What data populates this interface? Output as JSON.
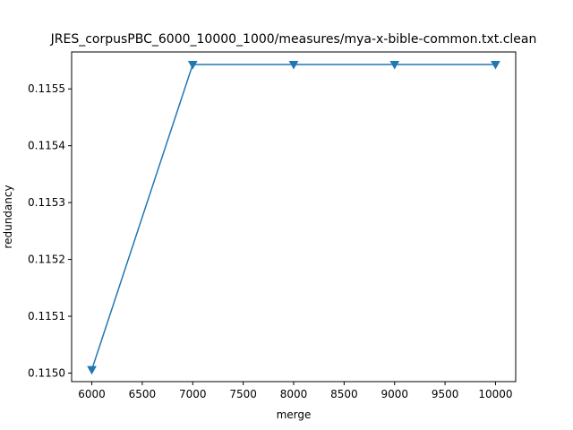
{
  "chart_data": {
    "type": "line",
    "title": "JRES_corpusPBC_6000_10000_1000/measures/mya-x-bible-common.txt.clean",
    "xlabel": "merge",
    "ylabel": "redundancy",
    "xlim": [
      5800,
      10200
    ],
    "ylim": [
      0.114985,
      0.115565
    ],
    "xticks": [
      6000,
      6500,
      7000,
      7500,
      8000,
      8500,
      9000,
      9500,
      10000
    ],
    "xtick_labels": [
      "6000",
      "6500",
      "7000",
      "7500",
      "8000",
      "8500",
      "9000",
      "9500",
      "10000"
    ],
    "yticks": [
      0.115,
      0.1151,
      0.1152,
      0.1153,
      0.1154,
      0.1155
    ],
    "ytick_labels": [
      "0.1150",
      "0.1151",
      "0.1152",
      "0.1153",
      "0.1154",
      "0.1155"
    ],
    "grid": false,
    "series": [
      {
        "color": "#1f77b4",
        "marker": "triangle-down",
        "x": [
          6000,
          7000,
          8000,
          9000,
          10000
        ],
        "y": [
          0.115006,
          0.115543,
          0.115543,
          0.115543,
          0.115543
        ]
      }
    ]
  }
}
